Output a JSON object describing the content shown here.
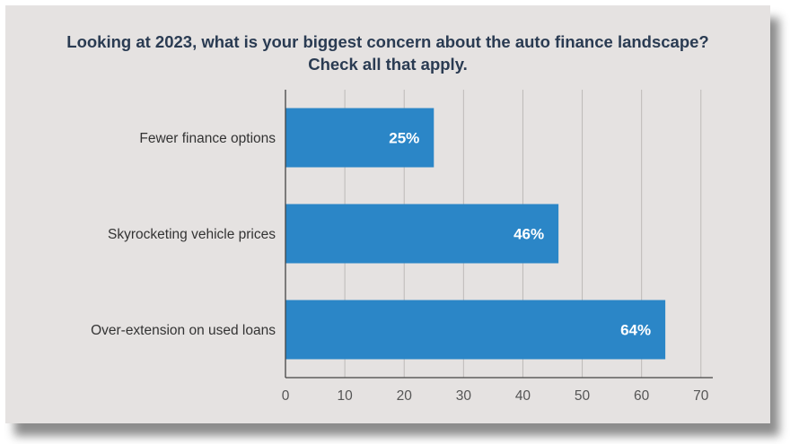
{
  "chart_data": {
    "type": "bar",
    "orientation": "horizontal",
    "title_lines": [
      "Looking at 2023, what is your biggest concern about the auto finance landscape?",
      "Check all that apply."
    ],
    "categories": [
      "Fewer finance options",
      "Skyrocketing vehicle prices",
      "Over-extension on used loans"
    ],
    "values": [
      25,
      46,
      64
    ],
    "data_labels": [
      "25%",
      "46%",
      "64%"
    ],
    "xlim": [
      0,
      72
    ],
    "xticks": [
      0,
      10,
      20,
      30,
      40,
      50,
      60,
      70
    ],
    "grid": "vertical",
    "bar_color": "#2b86c7"
  }
}
